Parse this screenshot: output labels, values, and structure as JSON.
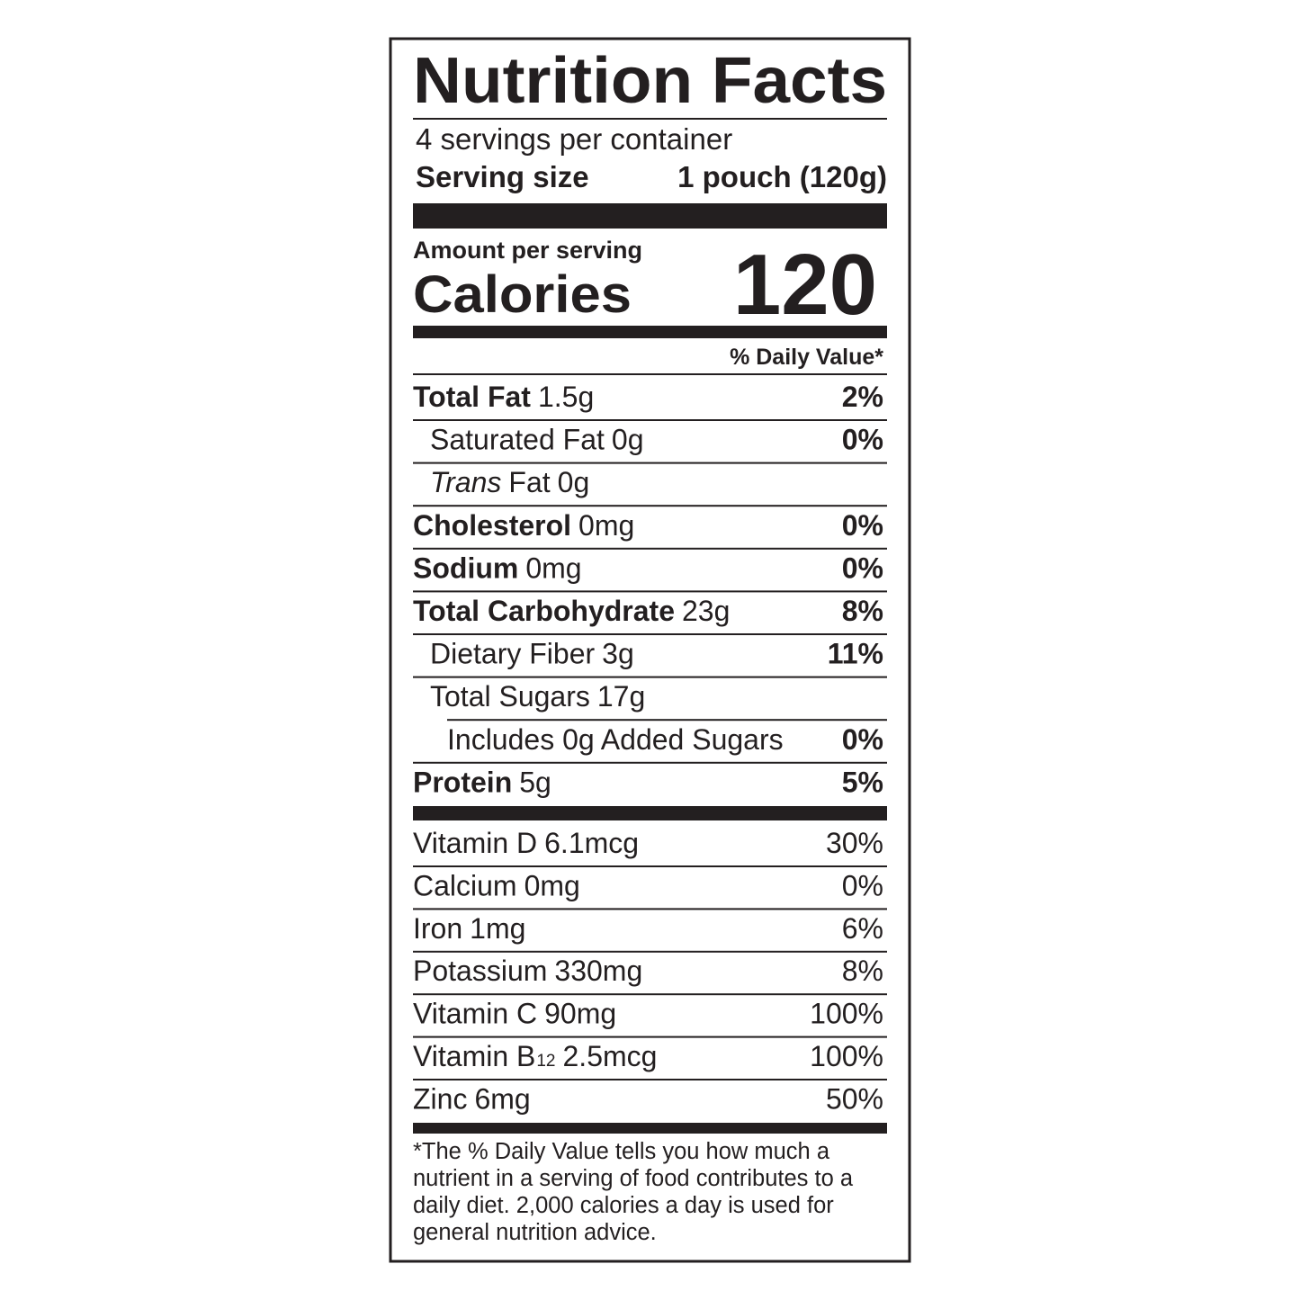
{
  "header": {
    "title": "Nutrition Facts",
    "servings": "4 servings per container",
    "serving_size_label": "Serving size",
    "serving_size_value": "1 pouch (120g)"
  },
  "calories": {
    "amount_label": "Amount per serving",
    "label": "Calories",
    "value": "120"
  },
  "daily_value_header": "% Daily Value*",
  "nutrients": [
    {
      "name": "Total Fat",
      "amount": "1.5g",
      "dv": "2%",
      "bold": true,
      "indent": 0
    },
    {
      "name": "Saturated Fat",
      "amount": "0g",
      "dv": "0%",
      "bold": false,
      "indent": 1
    },
    {
      "name_italic": "Trans",
      "name": "Fat",
      "amount": "0g",
      "bold": false,
      "indent": 1
    },
    {
      "name": "Cholesterol",
      "amount": "0mg",
      "dv": "0%",
      "bold": true,
      "indent": 0
    },
    {
      "name": "Sodium",
      "amount": "0mg",
      "dv": "0%",
      "bold": true,
      "indent": 0
    },
    {
      "name": "Total Carbohydrate",
      "amount": "23g",
      "dv": "8%",
      "bold": true,
      "indent": 0
    },
    {
      "name": "Dietary Fiber",
      "amount": "3g",
      "dv": "11%",
      "bold": false,
      "indent": 1
    },
    {
      "name": "Total Sugars",
      "amount": "17g",
      "bold": false,
      "indent": 1
    },
    {
      "name": "Includes 0g Added Sugars",
      "dv": "0%",
      "bold": false,
      "indent": 2
    },
    {
      "name": "Protein",
      "amount": "5g",
      "dv": "5%",
      "bold": true,
      "indent": 0
    }
  ],
  "vitamins": [
    {
      "name": "Vitamin D",
      "amount": "6.1mcg",
      "dv": "30%"
    },
    {
      "name": "Calcium",
      "amount": "0mg",
      "dv": "0%"
    },
    {
      "name": "Iron",
      "amount": "1mg",
      "dv": "6%"
    },
    {
      "name": "Potassium",
      "amount": "330mg",
      "dv": "8%"
    },
    {
      "name": "Vitamin C",
      "amount": "90mg",
      "dv": "100%"
    },
    {
      "name": "Vitamin B",
      "subscript": "12",
      "amount": "2.5mcg",
      "dv": "100%"
    },
    {
      "name": "Zinc",
      "amount": "6mg",
      "dv": "50%"
    }
  ],
  "footnote": [
    "*The % Daily Value tells you how much a",
    "nutrient in a serving of food contributes to a",
    "daily diet. 2,000 calories a day is used for",
    "general nutrition advice."
  ]
}
